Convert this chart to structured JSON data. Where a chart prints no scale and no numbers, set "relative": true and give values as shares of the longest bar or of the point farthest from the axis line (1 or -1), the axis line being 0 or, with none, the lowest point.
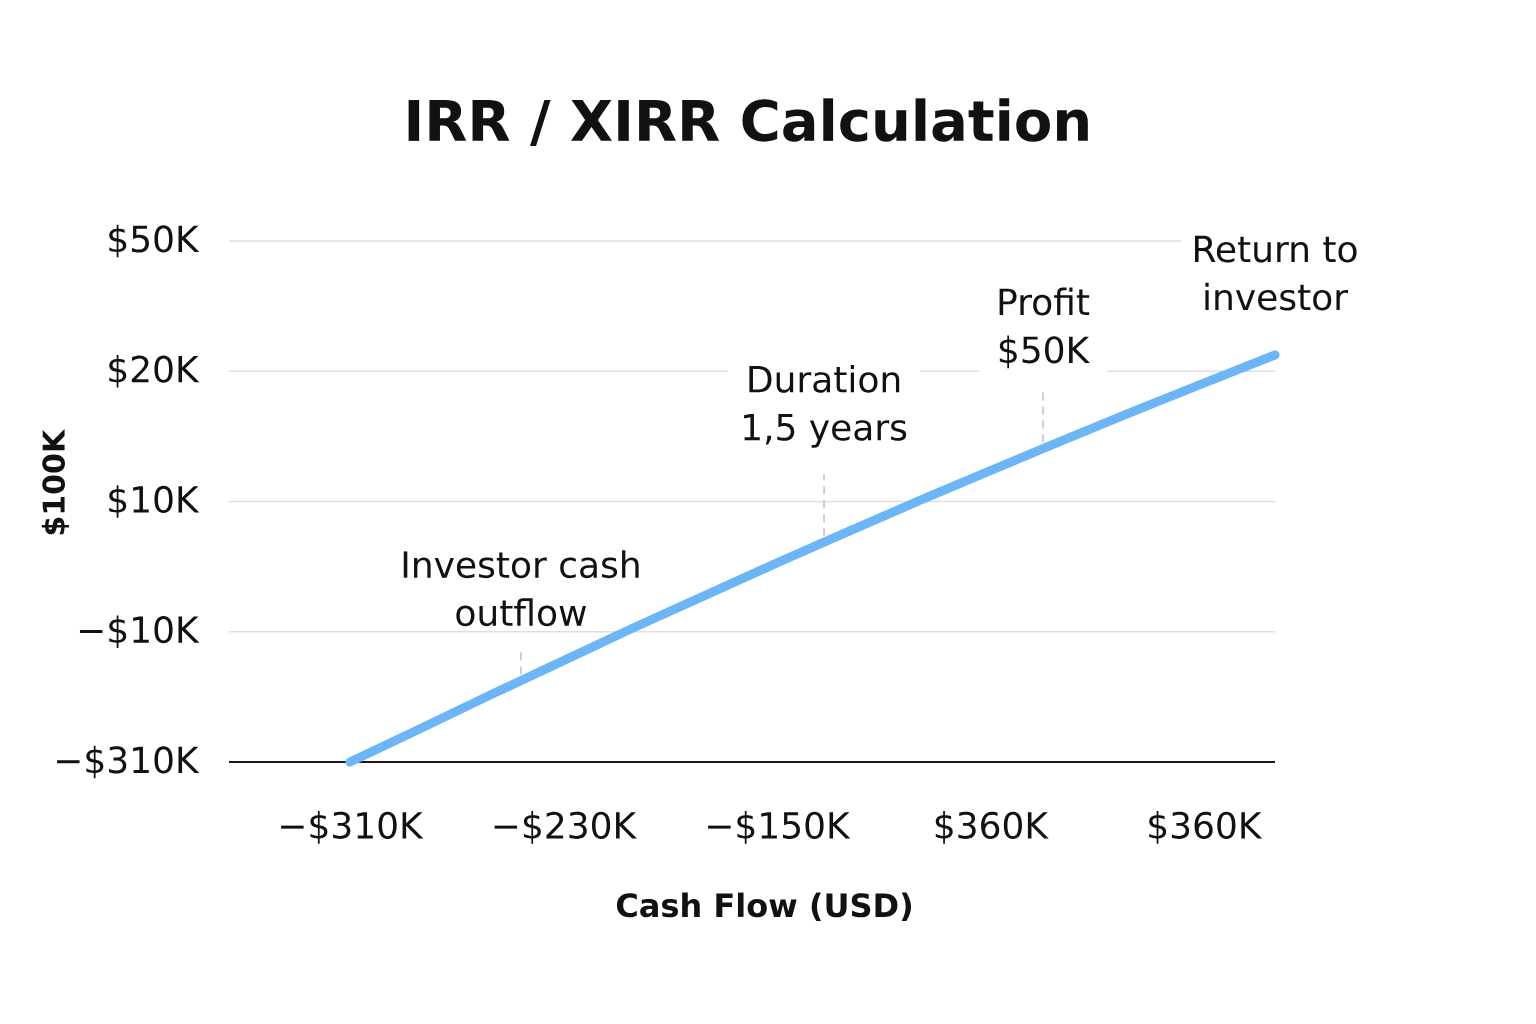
{
  "chart_data": {
    "type": "line",
    "title": "IRR / XIRR Calculation",
    "xlabel": "Cash Flow (USD)",
    "relative": true,
    "categories": [
      "−$310K",
      null,
      null,
      "−$230K",
      null,
      null,
      "−$150K",
      null,
      null,
      "$360K",
      null,
      null,
      "$360K",
      null
    ],
    "series": [
      {
        "color": "#6cb6f7",
        "values": [
          0,
          0.083,
          0.167,
          0.249,
          0.331,
          0.41,
          0.489,
          0.566,
          0.642,
          0.716,
          0.789,
          0.861,
          0.931,
          1
        ]
      }
    ],
    "ref_lines": [
      {
        "axis": "y",
        "value": 0.32,
        "label": "−$10K",
        "color": "#dedede"
      },
      {
        "axis": "y",
        "value": 0.64,
        "label": "$10K",
        "color": "#dedede"
      },
      {
        "axis": "y",
        "value": 0.96,
        "label": "$20K",
        "color": "#dedede"
      },
      {
        "axis": "y",
        "value": 1.28,
        "label": "$50K",
        "color": "#dedede"
      }
    ],
    "annotations": [
      {
        "text": "Investor cash outflow",
        "y": 0.2
      },
      {
        "text": "Duration 1,5 years",
        "y": 0.54
      },
      {
        "text": "Profit $50K",
        "y": 0.77
      },
      {
        "text": "Return to investor",
        "y": 1
      },
      "$100K",
      "−$310K"
    ],
    "line_style": "solid"
  }
}
